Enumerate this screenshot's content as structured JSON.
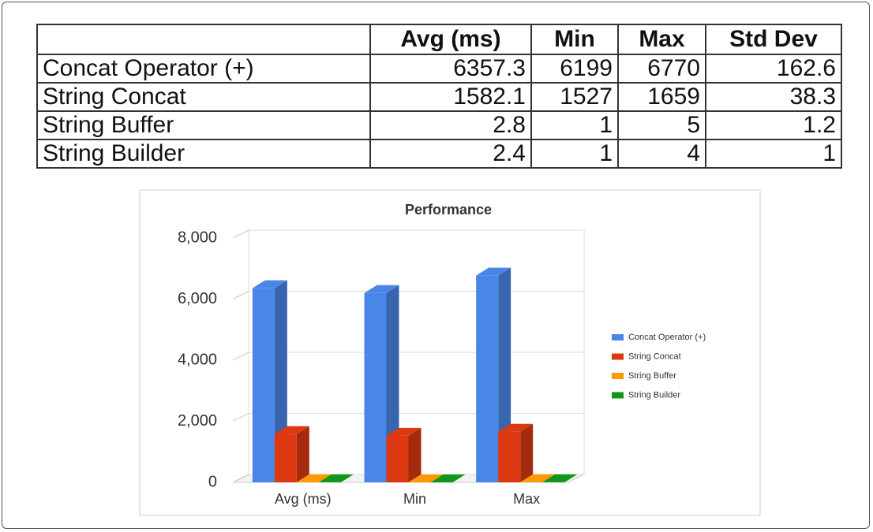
{
  "table": {
    "header": [
      "Avg (ms)",
      "Min",
      "Max",
      "Std Dev"
    ],
    "rows": [
      [
        "Concat Operator (+)",
        6357.3,
        6199,
        6770,
        162.6
      ],
      [
        "String Concat",
        1582.1,
        1527,
        1659,
        38.3
      ],
      [
        "String Buffer",
        2.8,
        1,
        5,
        1.2
      ],
      [
        "String Builder",
        2.4,
        1,
        4,
        1
      ]
    ]
  },
  "chart_data": {
    "type": "bar",
    "title": "Performance",
    "categories": [
      "Avg (ms)",
      "Min",
      "Max"
    ],
    "series": [
      {
        "name": "Concat Operator (+)",
        "color": "#4a86e8",
        "values": [
          6357.3,
          6199,
          6770
        ]
      },
      {
        "name": "String Concat",
        "color": "#dc3912",
        "values": [
          1582.1,
          1527,
          1659
        ]
      },
      {
        "name": "String Buffer",
        "color": "#ff9900",
        "values": [
          2.8,
          1,
          5
        ]
      },
      {
        "name": "String Builder",
        "color": "#109618",
        "values": [
          2.4,
          1,
          4
        ]
      }
    ],
    "ylim": [
      0,
      8000
    ],
    "yticks": [
      0,
      {
        "value": 2000,
        "label": "2,000"
      },
      {
        "value": 4000,
        "label": "4,000"
      },
      {
        "value": 6000,
        "label": "6,000"
      },
      {
        "value": 8000,
        "label": "8,000"
      }
    ],
    "grid": true,
    "legend": "right"
  }
}
